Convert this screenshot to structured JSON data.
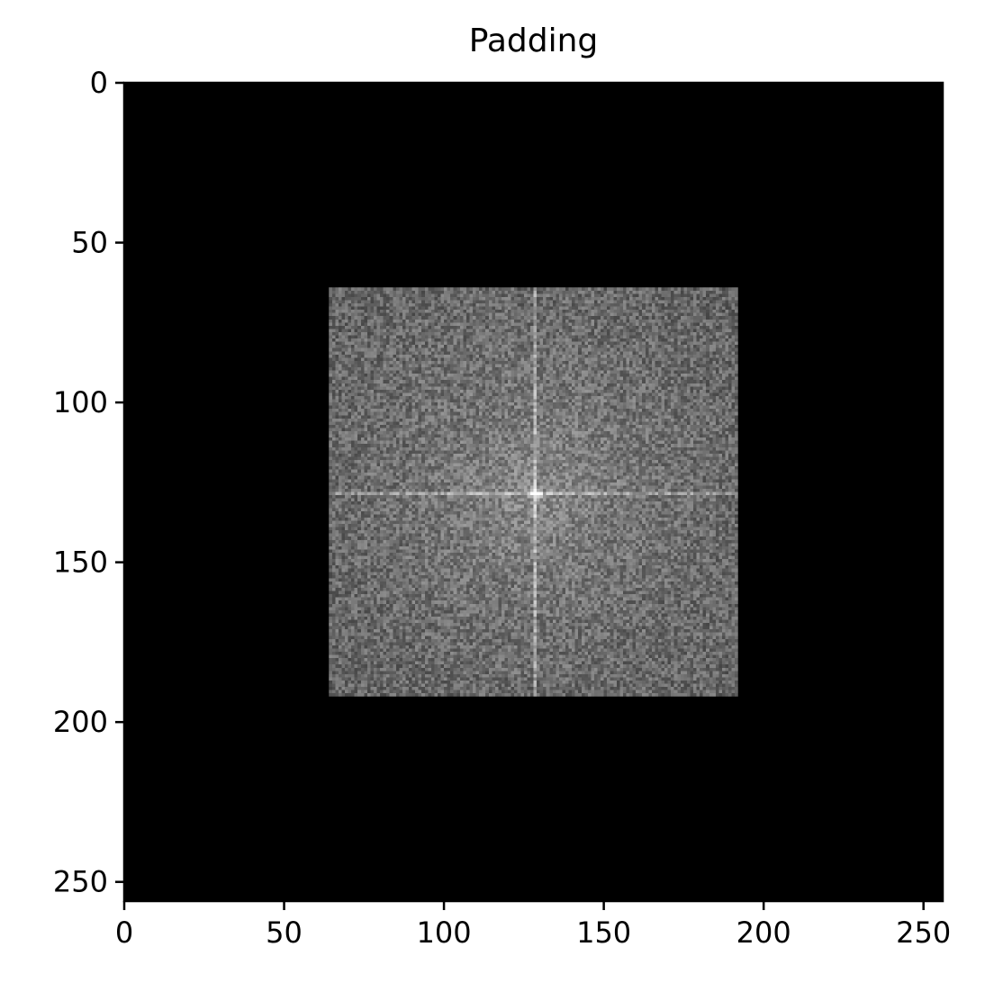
{
  "chart_data": {
    "type": "heatmap",
    "title": "Padding",
    "xlabel": "",
    "ylabel": "",
    "colormap": "gray",
    "image_size": [
      256,
      256
    ],
    "xlim": [
      0,
      256
    ],
    "ylim": [
      256,
      0
    ],
    "x_ticks": [
      0,
      50,
      100,
      150,
      200,
      250
    ],
    "y_ticks": [
      0,
      50,
      100,
      150,
      200,
      250
    ],
    "padding_value": 0,
    "spectrum_region": {
      "x_start": 64,
      "x_end": 192,
      "y_start": 64,
      "y_end": 192,
      "center": [
        128,
        128
      ]
    },
    "background_color": "#000000",
    "axis_color": "#000000"
  }
}
